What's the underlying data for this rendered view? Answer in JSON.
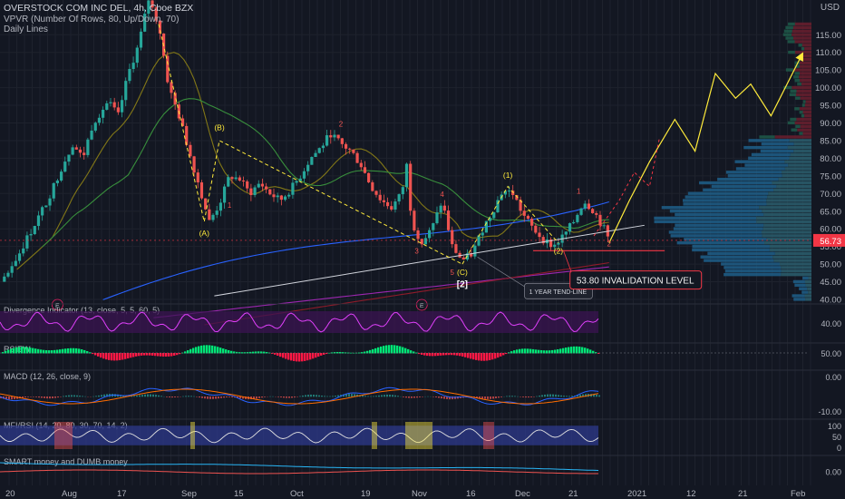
{
  "header": {
    "title": "OVERSTOCK COM INC DEL, 4h, Cboe BZX",
    "vpvr": "VPVR (Number Of Rows, 80, Up/Down, 70)",
    "daily": "Daily Lines",
    "currency": "USD"
  },
  "colors": {
    "background": "#131722",
    "up": "#26a69a",
    "down": "#ef5350",
    "wave": "#ffeb3b",
    "trendline": "#d1d4dc",
    "invalidation": "#f23645",
    "ma_long": "#9c27b0",
    "ma_blue": "#2962ff",
    "ma_green": "#388e3c",
    "ma_olive": "#827717",
    "price_tag": "#f23645"
  },
  "chart_data": [
    {
      "type": "candlestick",
      "ylim": [
        35,
        115
      ],
      "yticks": [
        "115.00",
        "110.00",
        "105.00",
        "100.00",
        "95.00",
        "90.00",
        "85.00",
        "80.00",
        "75.00",
        "70.00",
        "65.00",
        "60.00",
        "55.00",
        "50.00",
        "45.00",
        "40.00"
      ],
      "x_ticks": [
        "20",
        "Aug",
        "17",
        "Sep",
        "15",
        "Oct",
        "19",
        "Nov",
        "16",
        "Dec",
        "21",
        "2021",
        "12",
        "21",
        "Feb"
      ],
      "last_price": "56.73",
      "price_path": [
        {
          "t": 0,
          "y": 45
        },
        {
          "t": 3,
          "y": 52
        },
        {
          "t": 6,
          "y": 60
        },
        {
          "t": 9,
          "y": 68
        },
        {
          "t": 12,
          "y": 78
        },
        {
          "t": 14,
          "y": 84
        },
        {
          "t": 16,
          "y": 80
        },
        {
          "t": 18,
          "y": 90
        },
        {
          "t": 21,
          "y": 96
        },
        {
          "t": 23,
          "y": 92
        },
        {
          "t": 25,
          "y": 104
        },
        {
          "t": 27,
          "y": 112
        },
        {
          "t": 29,
          "y": 125
        },
        {
          "t": 31,
          "y": 118
        },
        {
          "t": 33,
          "y": 100
        },
        {
          "t": 35,
          "y": 92
        },
        {
          "t": 37,
          "y": 82
        },
        {
          "t": 39,
          "y": 72
        },
        {
          "t": 41,
          "y": 62
        },
        {
          "t": 43,
          "y": 67
        },
        {
          "t": 45,
          "y": 75
        },
        {
          "t": 47,
          "y": 74
        },
        {
          "t": 49,
          "y": 70
        },
        {
          "t": 51,
          "y": 73
        },
        {
          "t": 53,
          "y": 70
        },
        {
          "t": 55,
          "y": 68
        },
        {
          "t": 57,
          "y": 71
        },
        {
          "t": 59,
          "y": 75
        },
        {
          "t": 61,
          "y": 80
        },
        {
          "t": 63,
          "y": 83
        },
        {
          "t": 65,
          "y": 87
        },
        {
          "t": 67,
          "y": 84
        },
        {
          "t": 69,
          "y": 82
        },
        {
          "t": 71,
          "y": 78
        },
        {
          "t": 73,
          "y": 72
        },
        {
          "t": 75,
          "y": 68
        },
        {
          "t": 77,
          "y": 66
        },
        {
          "t": 79,
          "y": 70
        },
        {
          "t": 80,
          "y": 78
        },
        {
          "t": 81,
          "y": 62
        },
        {
          "t": 83,
          "y": 56
        },
        {
          "t": 85,
          "y": 60
        },
        {
          "t": 87,
          "y": 68
        },
        {
          "t": 89,
          "y": 55
        },
        {
          "t": 91,
          "y": 51
        },
        {
          "t": 93,
          "y": 53
        },
        {
          "t": 95,
          "y": 60
        },
        {
          "t": 97,
          "y": 65
        },
        {
          "t": 99,
          "y": 71
        },
        {
          "t": 101,
          "y": 70
        },
        {
          "t": 103,
          "y": 64
        },
        {
          "t": 105,
          "y": 60
        },
        {
          "t": 107,
          "y": 57
        },
        {
          "t": 109,
          "y": 55
        },
        {
          "t": 111,
          "y": 58
        },
        {
          "t": 113,
          "y": 62
        },
        {
          "t": 115,
          "y": 68
        },
        {
          "t": 117,
          "y": 65
        },
        {
          "t": 119,
          "y": 60
        },
        {
          "t": 120,
          "y": 56.73
        }
      ],
      "annotations": {
        "wave_labels": [
          "(A)",
          "(B)",
          "(C)",
          "[2]",
          "(1)",
          "(2)"
        ],
        "red_labels": [
          "1",
          "2",
          "3",
          "4",
          "5",
          "1",
          "2"
        ],
        "trendline_label": "1 YEAR TEND-LINE",
        "invalidation_label": "53.80 INVALIDATION LEVEL"
      },
      "projection": [
        {
          "t": 120,
          "y": 56
        },
        {
          "t": 124,
          "y": 68
        },
        {
          "t": 128,
          "y": 79
        },
        {
          "t": 133,
          "y": 91
        },
        {
          "t": 137,
          "y": 82
        },
        {
          "t": 141,
          "y": 104
        },
        {
          "t": 145,
          "y": 97
        },
        {
          "t": 148,
          "y": 101
        },
        {
          "t": 152,
          "y": 92
        },
        {
          "t": 158,
          "y": 109
        }
      ]
    },
    {
      "type": "line",
      "title": "Divergence Indicator (13, close, 5, 5, 60, 5)",
      "yticks": [
        "40.00"
      ]
    },
    {
      "type": "area",
      "title": "RSIEW",
      "yticks": [
        "50.00"
      ]
    },
    {
      "type": "line",
      "title": "MACD (12, 26, close, 9)",
      "yticks": [
        "0.00",
        "-10.00"
      ]
    },
    {
      "type": "line",
      "title": "MFI/RSI (14, 20, 80, 30, 70, 14, 2)",
      "yticks": [
        "100",
        "50",
        "0"
      ]
    },
    {
      "type": "line",
      "title": "SMART money and DUMB money",
      "yticks": [
        "0.00"
      ]
    }
  ]
}
